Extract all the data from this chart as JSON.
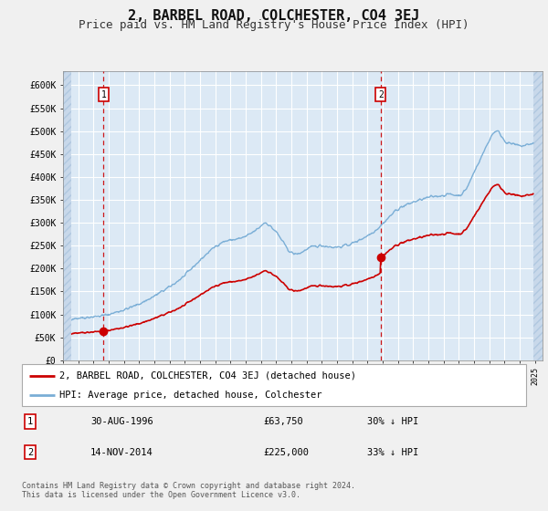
{
  "title": "2, BARBEL ROAD, COLCHESTER, CO4 3EJ",
  "subtitle": "Price paid vs. HM Land Registry's House Price Index (HPI)",
  "title_fontsize": 11,
  "subtitle_fontsize": 9,
  "background_color": "#dce9f5",
  "grid_color": "#ffffff",
  "ylim": [
    0,
    630000
  ],
  "yticks": [
    0,
    50000,
    100000,
    150000,
    200000,
    250000,
    300000,
    350000,
    400000,
    450000,
    500000,
    550000,
    600000
  ],
  "sale1_price": 63750,
  "sale1_x": 1996.66,
  "sale2_price": 225000,
  "sale2_x": 2014.87,
  "legend_line1": "2, BARBEL ROAD, COLCHESTER, CO4 3EJ (detached house)",
  "legend_line2": "HPI: Average price, detached house, Colchester",
  "table_row1": [
    "1",
    "30-AUG-1996",
    "£63,750",
    "30% ↓ HPI"
  ],
  "table_row2": [
    "2",
    "14-NOV-2014",
    "£225,000",
    "33% ↓ HPI"
  ],
  "footnote": "Contains HM Land Registry data © Crown copyright and database right 2024.\nThis data is licensed under the Open Government Licence v3.0.",
  "red_line_color": "#cc0000",
  "blue_line_color": "#7aaed6",
  "marker_color": "#cc0000",
  "dashed_line_color": "#cc0000",
  "xmin": 1994.0,
  "xmax": 2025.5,
  "hpi_data_x": [
    1994,
    1994.5,
    1995,
    1995.5,
    1996,
    1996.5,
    1997,
    1997.5,
    1998,
    1998.5,
    1999,
    1999.5,
    2000,
    2000.5,
    2001,
    2001.5,
    2002,
    2002.5,
    2003,
    2003.5,
    2004,
    2004.5,
    2005,
    2005.5,
    2006,
    2006.5,
    2007,
    2007.25,
    2007.5,
    2007.75,
    2008,
    2008.25,
    2008.5,
    2008.75,
    2009,
    2009.25,
    2009.5,
    2009.75,
    2010,
    2010.5,
    2011,
    2011.5,
    2012,
    2012.5,
    2013,
    2013.5,
    2014,
    2014.5,
    2015,
    2015.5,
    2016,
    2016.5,
    2017,
    2017.5,
    2018,
    2018.5,
    2019,
    2019.5,
    2020,
    2020.5,
    2021,
    2021.5,
    2022,
    2022.25,
    2022.5,
    2022.75,
    2023,
    2023.5,
    2024,
    2024.5,
    2025
  ],
  "hpi_data_y": [
    90000,
    91000,
    92000,
    93500,
    95000,
    97000,
    100000,
    105000,
    110000,
    116000,
    123000,
    131000,
    140000,
    150000,
    160000,
    172000,
    185000,
    202000,
    218000,
    234000,
    248000,
    258000,
    262000,
    265000,
    270000,
    280000,
    293000,
    300000,
    296000,
    288000,
    280000,
    268000,
    255000,
    243000,
    235000,
    232000,
    233000,
    237000,
    242000,
    248000,
    250000,
    248000,
    247000,
    250000,
    255000,
    263000,
    272000,
    283000,
    298000,
    315000,
    330000,
    338000,
    345000,
    350000,
    355000,
    358000,
    360000,
    362000,
    360000,
    375000,
    410000,
    445000,
    480000,
    495000,
    500000,
    492000,
    480000,
    472000,
    468000,
    470000,
    475000
  ]
}
